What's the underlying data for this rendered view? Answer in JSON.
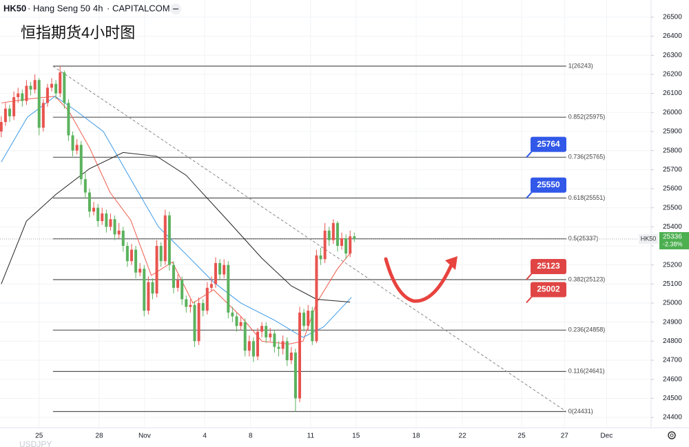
{
  "header": {
    "symbol": "HK50",
    "name": "Hang Seng 50",
    "interval": "4h",
    "exchange": "CAPITALCOM"
  },
  "footer_symbol": "USDJPY",
  "chart_data": {
    "type": "candlestick",
    "title": "恒指期货4小时图",
    "up_color": "#e8544f",
    "down_color": "#5bb25d",
    "x": [
      0,
      1,
      2,
      3,
      4,
      5,
      6,
      7,
      8,
      9,
      10,
      11,
      12,
      13,
      14,
      15,
      16,
      17,
      18,
      19,
      20,
      21,
      22,
      23,
      24,
      25,
      26,
      27,
      28,
      29,
      30,
      31,
      32,
      33,
      34,
      35,
      36,
      37,
      38,
      39,
      40,
      41,
      42,
      43,
      44,
      45,
      46,
      47,
      48,
      49,
      50,
      51,
      52,
      53,
      54,
      55,
      56,
      57,
      58,
      59,
      60,
      61,
      62,
      63,
      64,
      65,
      66,
      67,
      68,
      69,
      70,
      71,
      72,
      73,
      74,
      75,
      76,
      77,
      78,
      79,
      80,
      81,
      82,
      83,
      84
    ],
    "open": [
      25900,
      25950,
      26020,
      25980,
      26080,
      26100,
      26060,
      26140,
      26120,
      26170,
      25920,
      26050,
      26130,
      26150,
      26100,
      26210,
      26050,
      25880,
      25800,
      25830,
      25650,
      25580,
      25480,
      25500,
      25430,
      25470,
      25400,
      25440,
      25360,
      25380,
      25300,
      25220,
      25280,
      25160,
      25180,
      24960,
      25110,
      25050,
      25300,
      25220,
      25460,
      25200,
      25080,
      25120,
      25020,
      24980,
      24990,
      24800,
      25000,
      24960,
      25080,
      25100,
      25210,
      25150,
      25200,
      24950,
      24930,
      24880,
      24900,
      24750,
      24800,
      24720,
      24850,
      24880,
      24820,
      24840,
      24770,
      24760,
      24800,
      24700,
      24740,
      24500,
      24950,
      24880,
      24960,
      24800,
      25250,
      25230,
      25380,
      25330,
      25420,
      25300,
      25340,
      25260,
      25350
    ],
    "high": [
      25980,
      26050,
      26040,
      26110,
      26130,
      26120,
      26170,
      26160,
      26200,
      26180,
      26070,
      26150,
      26180,
      26170,
      26243,
      26220,
      26070,
      25900,
      25860,
      25850,
      25690,
      25600,
      25530,
      25520,
      25500,
      25490,
      25470,
      25460,
      25420,
      25400,
      25320,
      25310,
      25300,
      25210,
      25200,
      25140,
      25130,
      25330,
      25320,
      25490,
      25480,
      25220,
      25150,
      25140,
      25040,
      25020,
      25010,
      25030,
      25020,
      25110,
      25140,
      25240,
      25230,
      25230,
      25220,
      24980,
      24950,
      24930,
      24920,
      24830,
      24820,
      24870,
      24900,
      24900,
      24870,
      24860,
      24800,
      24830,
      24820,
      24770,
      24760,
      24980,
      24970,
      24990,
      24980,
      25280,
      25290,
      25420,
      25400,
      25440,
      25430,
      25370,
      25360,
      25380,
      25370
    ],
    "low": [
      25870,
      25930,
      25950,
      25960,
      26050,
      26030,
      26040,
      26090,
      26100,
      25880,
      25900,
      26030,
      26110,
      26070,
      26080,
      26020,
      25850,
      25770,
      25780,
      25620,
      25550,
      25450,
      25460,
      25400,
      25410,
      25370,
      25380,
      25330,
      25340,
      25270,
      25190,
      25200,
      25130,
      25140,
      24930,
      24940,
      25020,
      25030,
      25190,
      25200,
      25170,
      25050,
      25060,
      24990,
      24950,
      24950,
      24770,
      24780,
      24930,
      24940,
      25060,
      25080,
      25120,
      25130,
      24920,
      24900,
      24850,
      24860,
      24720,
      24720,
      24690,
      24700,
      24820,
      24790,
      24800,
      24740,
      24720,
      24730,
      24670,
      24680,
      24431,
      24480,
      24850,
      24860,
      24780,
      24790,
      25200,
      25210,
      25300,
      25310,
      25270,
      25280,
      25230,
      25240,
      25320
    ],
    "close": [
      25950,
      26020,
      25980,
      26080,
      26100,
      26060,
      26140,
      26120,
      26170,
      25920,
      26050,
      26130,
      26150,
      26100,
      26210,
      26050,
      25880,
      25800,
      25830,
      25650,
      25580,
      25480,
      25500,
      25430,
      25470,
      25400,
      25440,
      25360,
      25380,
      25300,
      25220,
      25280,
      25160,
      25180,
      24960,
      25110,
      25050,
      25300,
      25220,
      25460,
      25200,
      25080,
      25120,
      25020,
      24980,
      24990,
      24800,
      25000,
      24960,
      25080,
      25100,
      25210,
      25150,
      25200,
      24950,
      24930,
      24880,
      24900,
      24750,
      24800,
      24720,
      24850,
      24880,
      24820,
      24840,
      24770,
      24760,
      24800,
      24700,
      24740,
      24500,
      24950,
      24880,
      24960,
      24800,
      25250,
      25230,
      25380,
      25330,
      25420,
      25300,
      25340,
      25260,
      25350,
      25336
    ],
    "moving_averages": [
      {
        "color": "#f05a4a",
        "x": [
          0,
          6.2,
          12.8,
          16,
          21,
          25.9,
          30.8,
          35.7,
          40.7,
          45.6,
          50.5,
          57,
          62,
          68.5,
          71.8,
          75,
          80,
          83.3
        ],
        "values": [
          26050,
          26070,
          26085,
          26010,
          25815,
          25580,
          25435,
          25145,
          25215,
          25000,
          25070,
          24930,
          24800,
          24785,
          24800,
          25000,
          25180,
          25270
        ]
      },
      {
        "color": "#3d9ae8",
        "x": [
          0,
          6.2,
          12.8,
          17.7,
          24.3,
          30.8,
          37.4,
          44,
          50.5,
          57,
          65,
          71.8,
          76.7,
          83.3
        ],
        "values": [
          25740,
          25975,
          26085,
          26010,
          25900,
          25650,
          25400,
          25255,
          25110,
          25000,
          24910,
          24820,
          24875,
          25030
        ]
      },
      {
        "color": "#222222",
        "x": [
          0,
          6,
          13,
          21,
          29,
          37,
          44,
          54,
          62,
          69,
          75,
          83
        ],
        "values": [
          25100,
          25430,
          25570,
          25705,
          25790,
          25770,
          25670,
          25430,
          25235,
          25090,
          25020,
          25005
        ]
      }
    ],
    "xlim": [
      -0.3,
      154.6
    ],
    "xticks": [
      {
        "value": 9,
        "label": "25"
      },
      {
        "value": 23.3,
        "label": "28"
      },
      {
        "value": 34.1,
        "label": "Nov"
      },
      {
        "value": 48.4,
        "label": "4"
      },
      {
        "value": 59.3,
        "label": "8"
      },
      {
        "value": 73.6,
        "label": "11"
      },
      {
        "value": 84.4,
        "label": "15"
      },
      {
        "value": 98.7,
        "label": "18"
      },
      {
        "value": 109.7,
        "label": "22"
      },
      {
        "value": 123.8,
        "label": "25"
      },
      {
        "value": 134,
        "label": "27"
      },
      {
        "value": 144,
        "label": "Dec"
      }
    ],
    "ylim": [
      24346,
      26590
    ],
    "yticks": [
      24400,
      24500,
      24600,
      24700,
      24800,
      24900,
      25000,
      25100,
      25200,
      25300,
      25400,
      25500,
      25600,
      25700,
      25800,
      25900,
      26000,
      26100,
      26200,
      26300,
      26400,
      26500
    ],
    "fib_levels": [
      {
        "value": 26243,
        "label": "1(26243)"
      },
      {
        "value": 25975,
        "label": "0.852(25975)"
      },
      {
        "value": 25765,
        "label": "0.736(25765)"
      },
      {
        "value": 25551,
        "label": "0.618(25551)"
      },
      {
        "value": 25337,
        "label": "0.5(25337)"
      },
      {
        "value": 25123,
        "label": "0.382(25123)"
      },
      {
        "value": 24858,
        "label": "0.236(24858)"
      },
      {
        "value": 24641,
        "label": "0.116(24641)"
      },
      {
        "value": 24431,
        "label": "0(24431)"
      }
    ],
    "trendline": {
      "x": [
        12.3,
        134.4
      ],
      "y": [
        26243,
        24431
      ]
    },
    "badges": [
      {
        "value": 25764,
        "color": "#3158e8"
      },
      {
        "value": 25550,
        "color": "#3158e8"
      },
      {
        "value": 25123,
        "color": "#e04545"
      },
      {
        "value": 25002,
        "color": "#e04545"
      }
    ],
    "last_price": {
      "symbol": "HK50",
      "value": 25336,
      "change": "-2.38%",
      "color": "#4caf50"
    }
  }
}
